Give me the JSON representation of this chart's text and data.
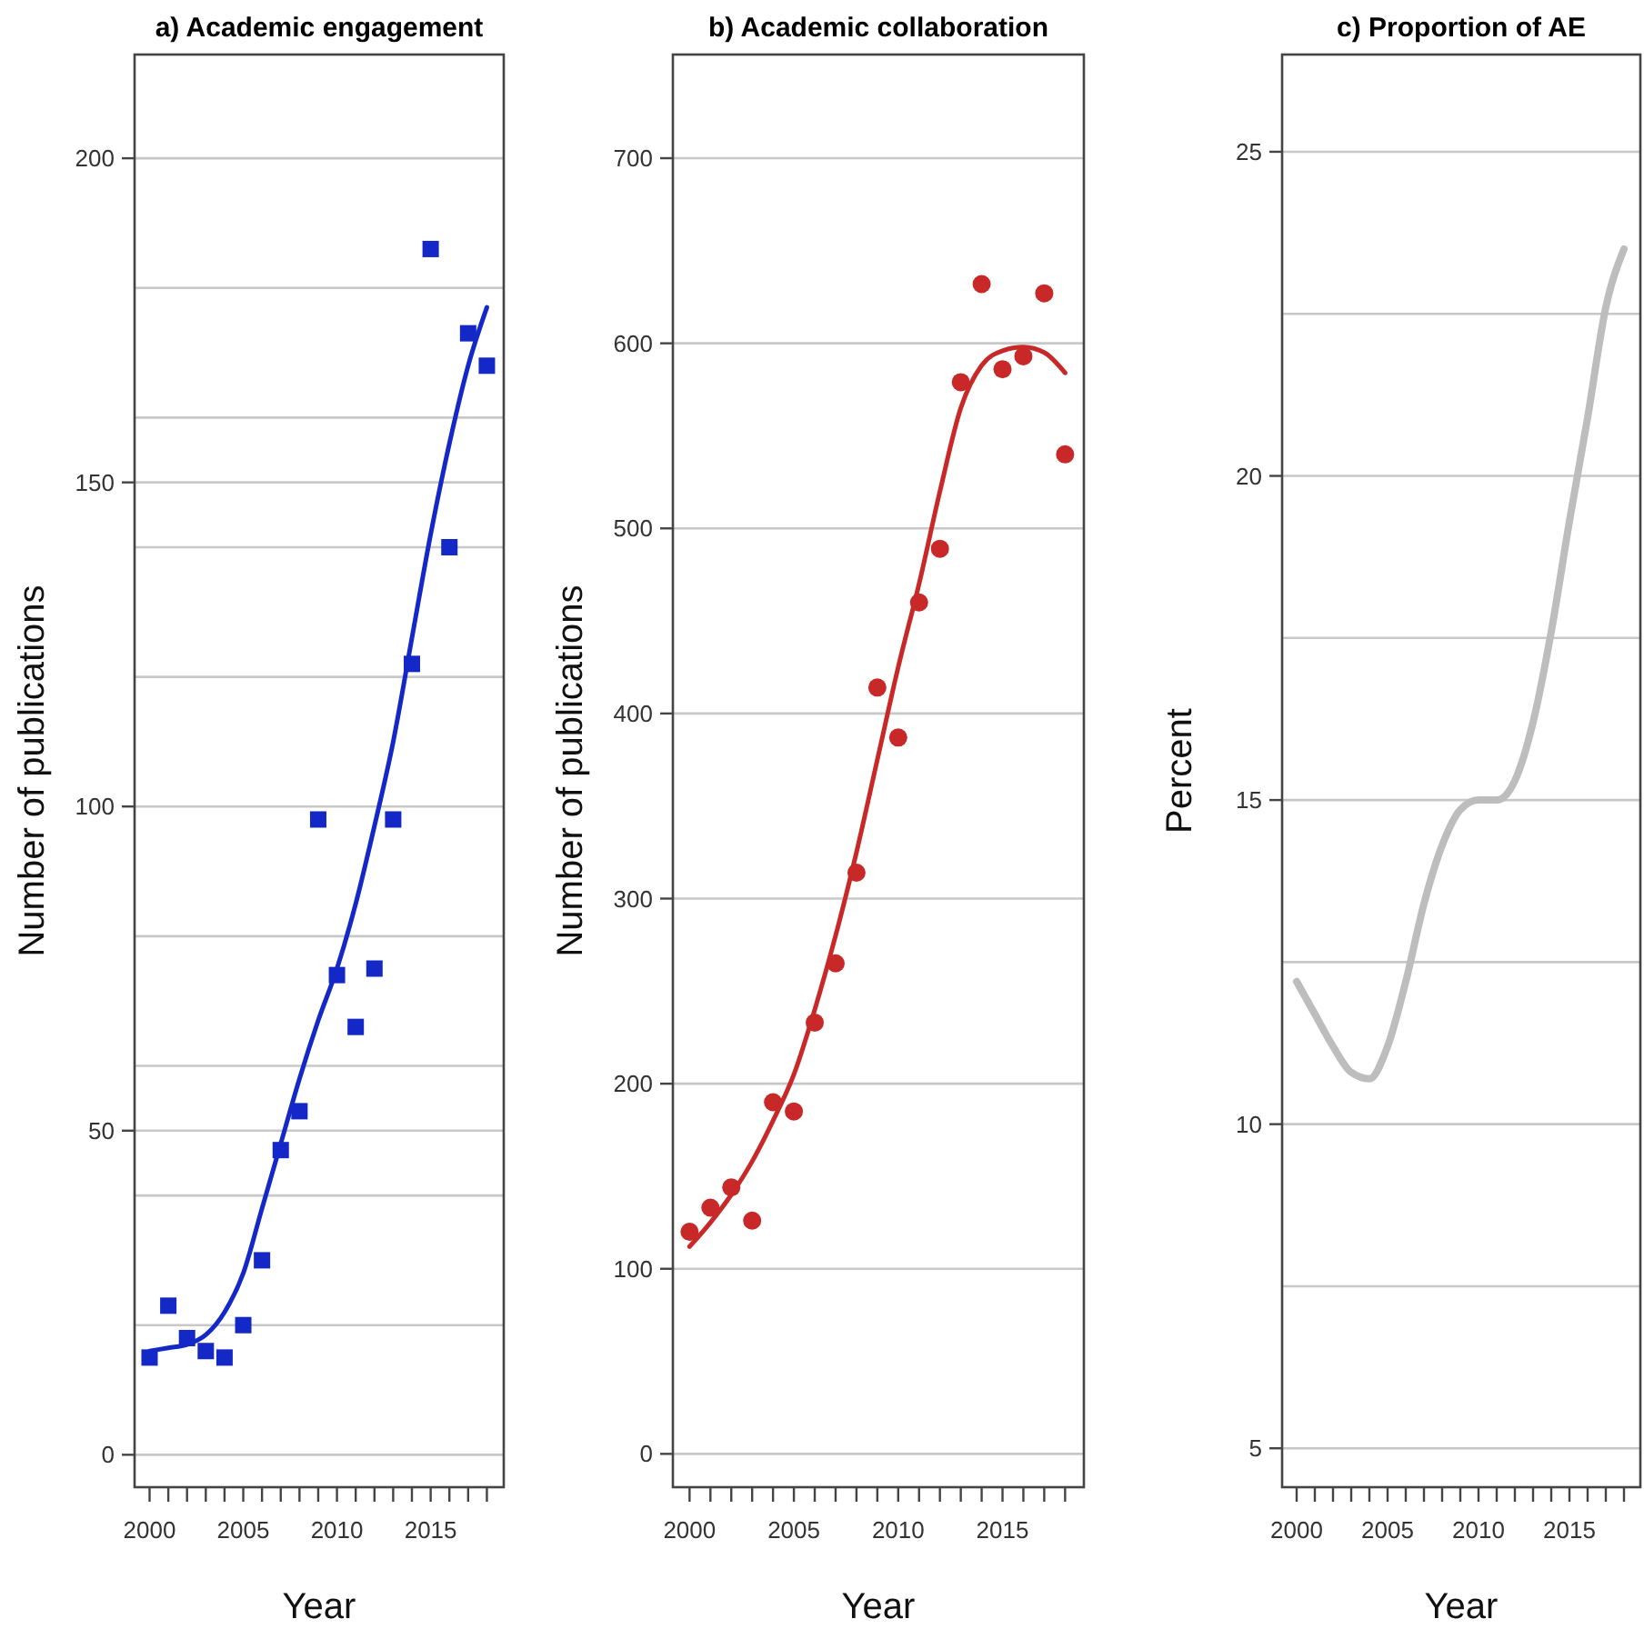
{
  "chart_data": [
    {
      "type": "scatter",
      "title": "a) Academic engagement",
      "xlabel": "Year",
      "ylabel": "Number of publications",
      "x": [
        2000,
        2001,
        2002,
        2003,
        2004,
        2005,
        2006,
        2007,
        2008,
        2009,
        2010,
        2011,
        2012,
        2013,
        2014,
        2015,
        2016,
        2017,
        2018
      ],
      "series": [
        {
          "type": "scatter",
          "marker": "square",
          "color": "#1428c8",
          "values": [
            15,
            23,
            18,
            16,
            15,
            20,
            30,
            47,
            53,
            98,
            74,
            66,
            75,
            98,
            122,
            186,
            140,
            173,
            168
          ]
        },
        {
          "type": "line",
          "color": "#1428c8",
          "values": [
            16,
            16.5,
            17,
            18.5,
            22,
            28,
            38,
            48,
            58,
            67,
            75,
            85,
            97,
            110,
            126,
            142,
            156,
            168,
            177
          ]
        }
      ],
      "xlim": [
        1999.2,
        2018.9
      ],
      "xticks": [
        2000,
        {
          "value": 2001,
          "label": null
        },
        {
          "value": 2002,
          "label": null
        },
        {
          "value": 2003,
          "label": null
        },
        {
          "value": 2004,
          "label": null
        },
        2005,
        {
          "value": 2006,
          "label": null
        },
        {
          "value": 2007,
          "label": null
        },
        {
          "value": 2008,
          "label": null
        },
        {
          "value": 2009,
          "label": null
        },
        2010,
        {
          "value": 2011,
          "label": null
        },
        {
          "value": 2012,
          "label": null
        },
        {
          "value": 2013,
          "label": null
        },
        {
          "value": 2014,
          "label": null
        },
        2015,
        {
          "value": 2016,
          "label": null
        },
        {
          "value": 2017,
          "label": null
        },
        {
          "value": 2018,
          "label": null
        }
      ],
      "ylim": [
        -5,
        216
      ],
      "yticks": [
        0,
        {
          "value": 20,
          "label": null
        },
        {
          "value": 40,
          "label": null
        },
        50,
        {
          "value": 60,
          "label": null
        },
        {
          "value": 80,
          "label": null
        },
        100,
        {
          "value": 120,
          "label": null
        },
        {
          "value": 140,
          "label": null
        },
        150,
        {
          "value": 160,
          "label": null
        },
        {
          "value": 180,
          "label": null
        },
        200
      ],
      "grid": "y"
    },
    {
      "type": "scatter",
      "title": "b) Academic collaboration",
      "xlabel": "Year",
      "ylabel": "Number of publications",
      "x": [
        2000,
        2001,
        2002,
        2003,
        2004,
        2005,
        2006,
        2007,
        2008,
        2009,
        2010,
        2011,
        2012,
        2013,
        2014,
        2015,
        2016,
        2017,
        2018
      ],
      "series": [
        {
          "type": "scatter",
          "marker": "circle",
          "color": "#c82828",
          "values": [
            120,
            133,
            144,
            126,
            190,
            185,
            233,
            265,
            314,
            414,
            387,
            460,
            489,
            579,
            632,
            586,
            593,
            627,
            540
          ]
        },
        {
          "type": "line",
          "color": "#c82828",
          "values": [
            112,
            125,
            140,
            158,
            180,
            205,
            240,
            280,
            325,
            375,
            425,
            470,
            520,
            565,
            588,
            596,
            598,
            595,
            584
          ]
        }
      ],
      "xlim": [
        1999.2,
        2018.9
      ],
      "xticks": [
        2000,
        {
          "value": 2001,
          "label": null
        },
        {
          "value": 2002,
          "label": null
        },
        {
          "value": 2003,
          "label": null
        },
        {
          "value": 2004,
          "label": null
        },
        2005,
        {
          "value": 2006,
          "label": null
        },
        {
          "value": 2007,
          "label": null
        },
        {
          "value": 2008,
          "label": null
        },
        {
          "value": 2009,
          "label": null
        },
        2010,
        {
          "value": 2011,
          "label": null
        },
        {
          "value": 2012,
          "label": null
        },
        {
          "value": 2013,
          "label": null
        },
        {
          "value": 2014,
          "label": null
        },
        2015,
        {
          "value": 2016,
          "label": null
        },
        {
          "value": 2017,
          "label": null
        },
        {
          "value": 2018,
          "label": null
        }
      ],
      "ylim": [
        -18,
        756
      ],
      "yticks": [
        0,
        100,
        200,
        300,
        400,
        500,
        600,
        700
      ],
      "grid": "y"
    },
    {
      "type": "line",
      "title": "c) Proportion of AE",
      "xlabel": "Year",
      "ylabel": "Percent",
      "x": [
        2000,
        2001,
        2002,
        2003,
        2004,
        2005,
        2006,
        2007,
        2008,
        2009,
        2010,
        2011,
        2012,
        2013,
        2014,
        2015,
        2016,
        2017,
        2018
      ],
      "series": [
        {
          "type": "line",
          "color": "#bdbdbd",
          "values": [
            12.2,
            11.7,
            11.2,
            10.8,
            10.7,
            11.2,
            12.2,
            13.4,
            14.3,
            14.85,
            15.0,
            15.0,
            15.3,
            16.2,
            17.6,
            19.3,
            20.9,
            22.6,
            23.5
          ]
        }
      ],
      "xlim": [
        1999.2,
        2018.9
      ],
      "xticks": [
        2000,
        {
          "value": 2001,
          "label": null
        },
        {
          "value": 2002,
          "label": null
        },
        {
          "value": 2003,
          "label": null
        },
        {
          "value": 2004,
          "label": null
        },
        2005,
        {
          "value": 2006,
          "label": null
        },
        {
          "value": 2007,
          "label": null
        },
        {
          "value": 2008,
          "label": null
        },
        {
          "value": 2009,
          "label": null
        },
        2010,
        {
          "value": 2011,
          "label": null
        },
        {
          "value": 2012,
          "label": null
        },
        {
          "value": 2013,
          "label": null
        },
        {
          "value": 2014,
          "label": null
        },
        2015,
        {
          "value": 2016,
          "label": null
        },
        {
          "value": 2017,
          "label": null
        },
        {
          "value": 2018,
          "label": null
        }
      ],
      "ylim": [
        4.4,
        26.5
      ],
      "yticks": [
        5,
        {
          "value": 7.5,
          "label": null
        },
        10,
        {
          "value": 12.5,
          "label": null
        },
        15,
        {
          "value": 17.5,
          "label": null
        },
        20,
        {
          "value": 22.5,
          "label": null
        },
        25
      ],
      "grid": "y"
    }
  ]
}
